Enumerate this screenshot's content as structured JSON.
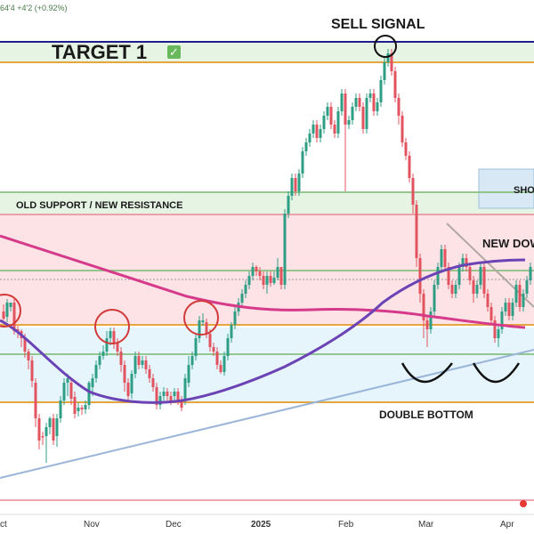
{
  "chart_data": {
    "type": "candlestick",
    "header_text": "64'4  +4'2 (+0.92%)",
    "annotations": {
      "target": "TARGET 1",
      "check_mark": "✓",
      "sell": "SELL SIGNAL",
      "old_support": "OLD SUPPORT / NEW RESISTANCE",
      "new_down": "NEW DOW",
      "short": "SHO",
      "double_bottom": "DOUBLE BOTTOM"
    },
    "x_ticks": [
      "ct",
      "Nov",
      "Dec",
      "2025",
      "Feb",
      "Mar",
      "Apr"
    ],
    "grid": false,
    "colors": {
      "up": "#2e9e84",
      "down": "#e0535f",
      "ma_slow": "#d63a8a",
      "ma_fast": "#6b43b5",
      "trend": "#9bb5d8",
      "downtrend": "#b0a8a0",
      "hline_orange": "#e5a640",
      "hline_green": "#76b96d",
      "target_line": "#1f1f8a"
    },
    "candles": [
      [
        4,
        350,
        358,
        342,
        360
      ],
      [
        8,
        356,
        340,
        336,
        362
      ],
      [
        12,
        345,
        340,
        340,
        350
      ],
      [
        16,
        340,
        372,
        336,
        376
      ],
      [
        20,
        370,
        372,
        366,
        380
      ],
      [
        24,
        372,
        380,
        370,
        390
      ],
      [
        28,
        380,
        395,
        375,
        402
      ],
      [
        32,
        395,
        405,
        392,
        415
      ],
      [
        36,
        405,
        428,
        400,
        435
      ],
      [
        40,
        430,
        470,
        425,
        480
      ],
      [
        44,
        470,
        495,
        465,
        505
      ],
      [
        48,
        490,
        490,
        485,
        500
      ],
      [
        52,
        490,
        480,
        475,
        520
      ],
      [
        56,
        480,
        470,
        468,
        488
      ],
      [
        60,
        470,
        495,
        465,
        500
      ],
      [
        64,
        490,
        470,
        465,
        502
      ],
      [
        68,
        470,
        450,
        445,
        475
      ],
      [
        72,
        450,
        430,
        425,
        455
      ],
      [
        76,
        430,
        425,
        420,
        445
      ],
      [
        80,
        430,
        448,
        425,
        455
      ],
      [
        84,
        446,
        465,
        440,
        470
      ],
      [
        88,
        462,
        458,
        452,
        468
      ],
      [
        92,
        458,
        460,
        455,
        466
      ],
      [
        96,
        460,
        455,
        450,
        465
      ],
      [
        100,
        455,
        430,
        428,
        460
      ],
      [
        104,
        435,
        425,
        420,
        445
      ],
      [
        108,
        425,
        410,
        405,
        430
      ],
      [
        112,
        410,
        400,
        395,
        415
      ],
      [
        116,
        400,
        395,
        388,
        404
      ],
      [
        120,
        395,
        380,
        372,
        400
      ],
      [
        124,
        380,
        372,
        368,
        388
      ],
      [
        128,
        372,
        385,
        368,
        392
      ],
      [
        132,
        385,
        395,
        380,
        400
      ],
      [
        136,
        395,
        410,
        390,
        418
      ],
      [
        140,
        410,
        430,
        405,
        440
      ],
      [
        144,
        430,
        445,
        425,
        450
      ],
      [
        148,
        442,
        420,
        416,
        448
      ],
      [
        152,
        420,
        400,
        395,
        425
      ],
      [
        156,
        400,
        410,
        395,
        415
      ],
      [
        160,
        410,
        405,
        400,
        414
      ],
      [
        164,
        405,
        415,
        400,
        420
      ],
      [
        168,
        415,
        425,
        410,
        430
      ],
      [
        172,
        425,
        435,
        420,
        440
      ],
      [
        176,
        435,
        455,
        430,
        460
      ],
      [
        180,
        455,
        445,
        440,
        460
      ],
      [
        184,
        445,
        440,
        435,
        450
      ],
      [
        188,
        440,
        445,
        436,
        450
      ],
      [
        192,
        445,
        450,
        440,
        455
      ],
      [
        196,
        445,
        440,
        436,
        450
      ],
      [
        200,
        440,
        450,
        436,
        455
      ],
      [
        204,
        450,
        458,
        445,
        462
      ],
      [
        208,
        450,
        425,
        420,
        455
      ],
      [
        212,
        430,
        410,
        400,
        435
      ],
      [
        216,
        410,
        400,
        395,
        415
      ],
      [
        220,
        400,
        380,
        375,
        405
      ],
      [
        224,
        380,
        360,
        355,
        385
      ],
      [
        228,
        362,
        360,
        352,
        366
      ],
      [
        232,
        362,
        375,
        358,
        380
      ],
      [
        236,
        375,
        390,
        370,
        395
      ],
      [
        240,
        390,
        395,
        385,
        400
      ],
      [
        244,
        395,
        410,
        390,
        415
      ],
      [
        248,
        410,
        418,
        405,
        420
      ],
      [
        252,
        418,
        400,
        395,
        422
      ],
      [
        256,
        400,
        380,
        375,
        405
      ],
      [
        260,
        380,
        365,
        362,
        385
      ],
      [
        264,
        365,
        350,
        345,
        370
      ],
      [
        268,
        350,
        340,
        335,
        355
      ],
      [
        272,
        340,
        330,
        325,
        345
      ],
      [
        276,
        330,
        320,
        315,
        335
      ],
      [
        280,
        320,
        310,
        305,
        325
      ],
      [
        284,
        310,
        300,
        295,
        315
      ],
      [
        288,
        300,
        305,
        298,
        310
      ],
      [
        292,
        305,
        310,
        300,
        315
      ],
      [
        296,
        310,
        320,
        305,
        325
      ],
      [
        300,
        320,
        310,
        305,
        330
      ],
      [
        304,
        310,
        318,
        305,
        322
      ],
      [
        308,
        318,
        312,
        305,
        320
      ],
      [
        312,
        312,
        300,
        290,
        315
      ],
      [
        316,
        300,
        320,
        300,
        325
      ],
      [
        320,
        320,
        240,
        235,
        325
      ],
      [
        324,
        240,
        220,
        215,
        245
      ],
      [
        328,
        220,
        200,
        195,
        225
      ],
      [
        332,
        200,
        215,
        195,
        220
      ],
      [
        336,
        215,
        195,
        190,
        220
      ],
      [
        340,
        195,
        170,
        165,
        200
      ],
      [
        344,
        170,
        160,
        155,
        175
      ],
      [
        348,
        160,
        150,
        145,
        165
      ],
      [
        352,
        150,
        140,
        135,
        155
      ],
      [
        356,
        140,
        155,
        135,
        160
      ],
      [
        360,
        155,
        145,
        140,
        160
      ],
      [
        364,
        145,
        130,
        125,
        150
      ],
      [
        368,
        130,
        120,
        115,
        135
      ],
      [
        372,
        120,
        140,
        115,
        145
      ],
      [
        376,
        140,
        150,
        135,
        155
      ],
      [
        380,
        150,
        125,
        120,
        155
      ],
      [
        384,
        125,
        105,
        100,
        130
      ],
      [
        388,
        105,
        140,
        100,
        215
      ],
      [
        392,
        140,
        135,
        130,
        145
      ],
      [
        396,
        135,
        120,
        115,
        140
      ],
      [
        400,
        120,
        110,
        105,
        125
      ],
      [
        404,
        110,
        120,
        105,
        125
      ],
      [
        408,
        120,
        145,
        115,
        150
      ],
      [
        412,
        145,
        110,
        105,
        150
      ],
      [
        416,
        110,
        105,
        100,
        115
      ],
      [
        420,
        105,
        125,
        100,
        130
      ],
      [
        424,
        125,
        115,
        110,
        130
      ],
      [
        428,
        115,
        90,
        85,
        120
      ],
      [
        432,
        90,
        70,
        65,
        95
      ],
      [
        436,
        70,
        60,
        55,
        75
      ],
      [
        440,
        60,
        80,
        55,
        85
      ],
      [
        444,
        80,
        110,
        75,
        115
      ],
      [
        448,
        110,
        130,
        105,
        140
      ],
      [
        452,
        130,
        160,
        125,
        165
      ],
      [
        456,
        160,
        175,
        155,
        180
      ],
      [
        460,
        175,
        200,
        170,
        205
      ],
      [
        464,
        200,
        230,
        195,
        240
      ],
      [
        468,
        230,
        290,
        225,
        300
      ],
      [
        472,
        290,
        330,
        285,
        340
      ],
      [
        476,
        330,
        360,
        325,
        380
      ],
      [
        480,
        360,
        370,
        355,
        390
      ],
      [
        484,
        370,
        350,
        345,
        375
      ],
      [
        488,
        350,
        320,
        315,
        355
      ],
      [
        492,
        320,
        300,
        295,
        325
      ],
      [
        496,
        300,
        280,
        275,
        305
      ],
      [
        500,
        280,
        300,
        275,
        305
      ],
      [
        504,
        300,
        320,
        295,
        325
      ],
      [
        508,
        320,
        330,
        315,
        335
      ],
      [
        512,
        330,
        320,
        315,
        335
      ],
      [
        516,
        320,
        300,
        295,
        325
      ],
      [
        520,
        300,
        290,
        285,
        305
      ],
      [
        524,
        290,
        300,
        285,
        305
      ],
      [
        528,
        300,
        315,
        295,
        320
      ],
      [
        532,
        315,
        330,
        310,
        340
      ],
      [
        536,
        330,
        320,
        315,
        335
      ],
      [
        540,
        320,
        300,
        295,
        325
      ],
      [
        544,
        300,
        330,
        295,
        335
      ],
      [
        548,
        330,
        345,
        325,
        350
      ],
      [
        552,
        345,
        360,
        340,
        365
      ],
      [
        556,
        360,
        380,
        355,
        385
      ],
      [
        560,
        380,
        370,
        365,
        390
      ],
      [
        564,
        370,
        350,
        345,
        375
      ],
      [
        568,
        350,
        340,
        335,
        355
      ],
      [
        572,
        340,
        355,
        335,
        360
      ],
      [
        576,
        355,
        340,
        335,
        360
      ],
      [
        580,
        340,
        320,
        315,
        345
      ],
      [
        584,
        320,
        345,
        315,
        350
      ],
      [
        588,
        345,
        330,
        325,
        350
      ],
      [
        592,
        330,
        315,
        310,
        335
      ],
      [
        596,
        315,
        300,
        295,
        320
      ]
    ]
  }
}
